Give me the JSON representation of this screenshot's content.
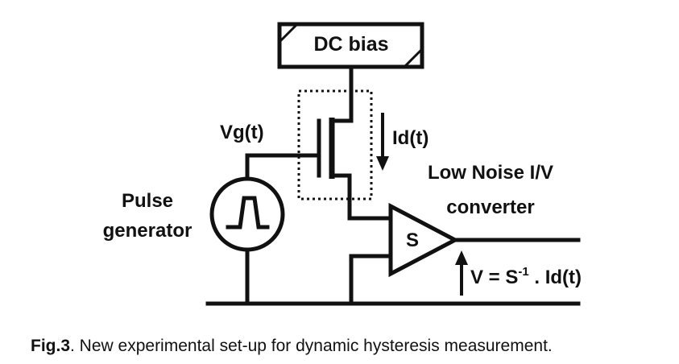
{
  "labels": {
    "dc_bias": "DC bias",
    "vg": "Vg(t)",
    "id": "Id(t)",
    "pulse_line1": "Pulse",
    "pulse_line2": "generator",
    "converter_line1": "Low Noise I/V",
    "converter_line2": "converter",
    "amp_symbol": "S",
    "output_prefix": "V = S",
    "output_exponent": "-1",
    "output_suffix": " . Id(t)"
  },
  "caption": {
    "label": "Fig.3",
    "text": ".  New experimental set-up for dynamic hysteresis measurement."
  }
}
